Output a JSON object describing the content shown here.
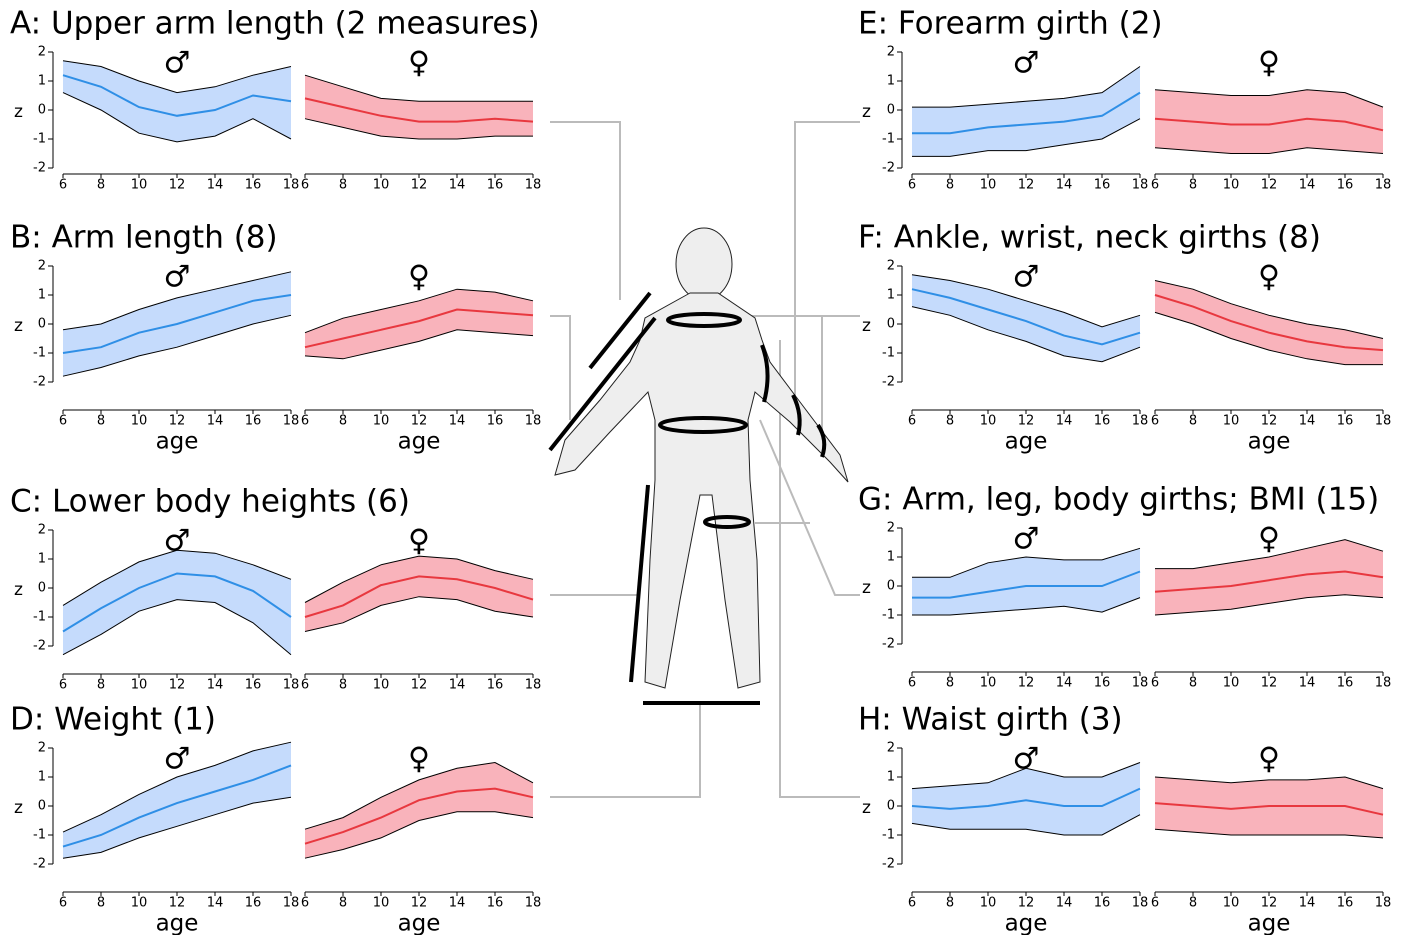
{
  "chart_data": [
    {
      "type": "line",
      "title": "A: Upper arm length (2 measures)",
      "ylabel": "z",
      "x": [
        6,
        8,
        10,
        12,
        14,
        16,
        18
      ],
      "xlim": [
        6,
        18
      ],
      "xticks": [
        6,
        8,
        10,
        12,
        14,
        16,
        18
      ],
      "ylim": [
        -2,
        2
      ],
      "yticks": [
        -2,
        -1,
        0,
        1,
        2
      ],
      "series": [
        {
          "name": "♂",
          "color": "#2f8fe6",
          "fill": "#c5dbfc",
          "values": [
            1.2,
            0.8,
            0.1,
            -0.2,
            0,
            0.5,
            0.3
          ],
          "lower": [
            0.6,
            0,
            -0.8,
            -1.1,
            -0.9,
            -0.3,
            -1
          ],
          "upper": [
            1.7,
            1.5,
            1,
            0.6,
            0.8,
            1.2,
            1.5
          ]
        },
        {
          "name": "♀",
          "color": "#e8383f",
          "fill": "#f9b3bb",
          "values": [
            0.4,
            0.1,
            -0.2,
            -0.4,
            -0.4,
            -0.3,
            -0.4
          ],
          "lower": [
            -0.3,
            -0.6,
            -0.9,
            -1,
            -1,
            -0.9,
            -0.9
          ],
          "upper": [
            1.2,
            0.8,
            0.4,
            0.3,
            0.3,
            0.3,
            0.3
          ]
        }
      ]
    },
    {
      "type": "line",
      "title": "B: Arm length (8)",
      "ylabel": "z",
      "xlabel": "age",
      "x": [
        6,
        8,
        10,
        12,
        14,
        16,
        18
      ],
      "xlim": [
        6,
        18
      ],
      "xticks": [
        6,
        8,
        10,
        12,
        14,
        16,
        18
      ],
      "ylim": [
        -2,
        2
      ],
      "yticks": [
        -2,
        -1,
        0,
        1,
        2
      ],
      "series": [
        {
          "name": "♂",
          "color": "#2f8fe6",
          "fill": "#c5dbfc",
          "values": [
            -1,
            -0.8,
            -0.3,
            0,
            0.4,
            0.8,
            1
          ],
          "lower": [
            -1.8,
            -1.5,
            -1.1,
            -0.8,
            -0.4,
            0,
            0.3
          ],
          "upper": [
            -0.2,
            0,
            0.5,
            0.9,
            1.2,
            1.5,
            1.8
          ]
        },
        {
          "name": "♀",
          "color": "#e8383f",
          "fill": "#f9b3bb",
          "values": [
            -0.8,
            -0.5,
            -0.2,
            0.1,
            0.5,
            0.4,
            0.3
          ],
          "lower": [
            -1.1,
            -1.2,
            -0.9,
            -0.6,
            -0.2,
            -0.3,
            -0.4
          ],
          "upper": [
            -0.3,
            0.2,
            0.5,
            0.8,
            1.2,
            1.1,
            0.8
          ]
        }
      ]
    },
    {
      "type": "line",
      "title": "C: Lower body heights (6)",
      "ylabel": "z",
      "x": [
        6,
        8,
        10,
        12,
        14,
        16,
        18
      ],
      "xlim": [
        6,
        18
      ],
      "xticks": [
        6,
        8,
        10,
        12,
        14,
        16,
        18
      ],
      "ylim": [
        -2,
        2
      ],
      "yticks": [
        -2,
        -1,
        0,
        1,
        2
      ],
      "series": [
        {
          "name": "♂",
          "color": "#2f8fe6",
          "fill": "#c5dbfc",
          "values": [
            -1.5,
            -0.7,
            0,
            0.5,
            0.4,
            -0.1,
            -1
          ],
          "lower": [
            -2.3,
            -1.6,
            -0.8,
            -0.4,
            -0.5,
            -1.2,
            -2.3
          ],
          "upper": [
            -0.6,
            0.2,
            0.9,
            1.3,
            1.2,
            0.8,
            0.3
          ]
        },
        {
          "name": "♀",
          "color": "#e8383f",
          "fill": "#f9b3bb",
          "values": [
            -1,
            -0.6,
            0.1,
            0.4,
            0.3,
            0,
            -0.4
          ],
          "lower": [
            -1.5,
            -1.2,
            -0.6,
            -0.3,
            -0.4,
            -0.8,
            -1
          ],
          "upper": [
            -0.5,
            0.2,
            0.8,
            1.1,
            1,
            0.6,
            0.3
          ]
        }
      ]
    },
    {
      "type": "line",
      "title": "D: Weight (1)",
      "ylabel": "z",
      "xlabel": "age",
      "x": [
        6,
        8,
        10,
        12,
        14,
        16,
        18
      ],
      "xlim": [
        6,
        18
      ],
      "xticks": [
        6,
        8,
        10,
        12,
        14,
        16,
        18
      ],
      "ylim": [
        -2,
        2
      ],
      "yticks": [
        -2,
        -1,
        0,
        1,
        2
      ],
      "series": [
        {
          "name": "♂",
          "color": "#2f8fe6",
          "fill": "#c5dbfc",
          "values": [
            -1.4,
            -1,
            -0.4,
            0.1,
            0.5,
            0.9,
            1.4
          ],
          "lower": [
            -1.8,
            -1.6,
            -1.1,
            -0.7,
            -0.3,
            0.1,
            0.3
          ],
          "upper": [
            -0.9,
            -0.3,
            0.4,
            1,
            1.4,
            1.9,
            2.2
          ]
        },
        {
          "name": "♀",
          "color": "#e8383f",
          "fill": "#f9b3bb",
          "values": [
            -1.3,
            -0.9,
            -0.4,
            0.2,
            0.5,
            0.6,
            0.3
          ],
          "lower": [
            -1.8,
            -1.5,
            -1.1,
            -0.5,
            -0.2,
            -0.2,
            -0.4
          ],
          "upper": [
            -0.8,
            -0.4,
            0.3,
            0.9,
            1.3,
            1.5,
            0.8
          ]
        }
      ]
    },
    {
      "type": "line",
      "title": "E: Forearm girth (2)",
      "ylabel": "z",
      "x": [
        6,
        8,
        10,
        12,
        14,
        16,
        18
      ],
      "xlim": [
        6,
        18
      ],
      "xticks": [
        6,
        8,
        10,
        12,
        14,
        16,
        18
      ],
      "ylim": [
        -2,
        2
      ],
      "yticks": [
        -2,
        -1,
        0,
        1,
        2
      ],
      "series": [
        {
          "name": "♂",
          "color": "#2f8fe6",
          "fill": "#c5dbfc",
          "values": [
            -0.8,
            -0.8,
            -0.6,
            -0.5,
            -0.4,
            -0.2,
            0.6
          ],
          "lower": [
            -1.6,
            -1.6,
            -1.4,
            -1.4,
            -1.2,
            -1,
            -0.3
          ],
          "upper": [
            0.1,
            0.1,
            0.2,
            0.3,
            0.4,
            0.6,
            1.5
          ]
        },
        {
          "name": "♀",
          "color": "#e8383f",
          "fill": "#f9b3bb",
          "values": [
            -0.3,
            -0.4,
            -0.5,
            -0.5,
            -0.3,
            -0.4,
            -0.7
          ],
          "lower": [
            -1.3,
            -1.4,
            -1.5,
            -1.5,
            -1.3,
            -1.4,
            -1.5
          ],
          "upper": [
            0.7,
            0.6,
            0.5,
            0.5,
            0.7,
            0.6,
            0.1
          ]
        }
      ]
    },
    {
      "type": "line",
      "title": "F: Ankle, wrist, neck girths (8)",
      "ylabel": "z",
      "xlabel": "age",
      "x": [
        6,
        8,
        10,
        12,
        14,
        16,
        18
      ],
      "xlim": [
        6,
        18
      ],
      "xticks": [
        6,
        8,
        10,
        12,
        14,
        16,
        18
      ],
      "ylim": [
        -2,
        2
      ],
      "yticks": [
        -2,
        -1,
        0,
        1,
        2
      ],
      "series": [
        {
          "name": "♂",
          "color": "#2f8fe6",
          "fill": "#c5dbfc",
          "values": [
            1.2,
            0.9,
            0.5,
            0.1,
            -0.4,
            -0.7,
            -0.3
          ],
          "lower": [
            0.6,
            0.3,
            -0.2,
            -0.6,
            -1.1,
            -1.3,
            -0.8
          ],
          "upper": [
            1.7,
            1.5,
            1.2,
            0.8,
            0.4,
            -0.1,
            0.3
          ]
        },
        {
          "name": "♀",
          "color": "#e8383f",
          "fill": "#f9b3bb",
          "values": [
            1,
            0.6,
            0.1,
            -0.3,
            -0.6,
            -0.8,
            -0.9
          ],
          "lower": [
            0.4,
            0,
            -0.5,
            -0.9,
            -1.2,
            -1.4,
            -1.4
          ],
          "upper": [
            1.5,
            1.2,
            0.7,
            0.3,
            0,
            -0.2,
            -0.5
          ]
        }
      ]
    },
    {
      "type": "line",
      "title": "G: Arm, leg, body girths; BMI (15)",
      "ylabel": "z",
      "x": [
        6,
        8,
        10,
        12,
        14,
        16,
        18
      ],
      "xlim": [
        6,
        18
      ],
      "xticks": [
        6,
        8,
        10,
        12,
        14,
        16,
        18
      ],
      "ylim": [
        -2,
        2
      ],
      "yticks": [
        -2,
        -1,
        0,
        1,
        2
      ],
      "series": [
        {
          "name": "♂",
          "color": "#2f8fe6",
          "fill": "#c5dbfc",
          "values": [
            -0.4,
            -0.4,
            -0.2,
            0,
            0,
            0,
            0.5
          ],
          "lower": [
            -1,
            -1,
            -0.9,
            -0.8,
            -0.7,
            -0.9,
            -0.4
          ],
          "upper": [
            0.3,
            0.3,
            0.8,
            1,
            0.9,
            0.9,
            1.3
          ]
        },
        {
          "name": "♀",
          "color": "#e8383f",
          "fill": "#f9b3bb",
          "values": [
            -0.2,
            -0.1,
            0,
            0.2,
            0.4,
            0.5,
            0.3
          ],
          "lower": [
            -1,
            -0.9,
            -0.8,
            -0.6,
            -0.4,
            -0.3,
            -0.4
          ],
          "upper": [
            0.6,
            0.6,
            0.8,
            1,
            1.3,
            1.6,
            1.2
          ]
        }
      ]
    },
    {
      "type": "line",
      "title": "H: Waist girth (3)",
      "ylabel": "z",
      "xlabel": "age",
      "x": [
        6,
        8,
        10,
        12,
        14,
        16,
        18
      ],
      "xlim": [
        6,
        18
      ],
      "xticks": [
        6,
        8,
        10,
        12,
        14,
        16,
        18
      ],
      "ylim": [
        -2,
        2
      ],
      "yticks": [
        -2,
        -1,
        0,
        1,
        2
      ],
      "series": [
        {
          "name": "♂",
          "color": "#2f8fe6",
          "fill": "#c5dbfc",
          "values": [
            0,
            -0.1,
            0,
            0.2,
            0,
            0,
            0.6
          ],
          "lower": [
            -0.6,
            -0.8,
            -0.8,
            -0.8,
            -1,
            -1,
            -0.3
          ],
          "upper": [
            0.6,
            0.7,
            0.8,
            1.3,
            1,
            1,
            1.5
          ]
        },
        {
          "name": "♀",
          "color": "#e8383f",
          "fill": "#f9b3bb",
          "values": [
            0.1,
            0,
            -0.1,
            0,
            0,
            0,
            -0.3
          ],
          "lower": [
            -0.8,
            -0.9,
            -1,
            -1,
            -1,
            -1,
            -1.1
          ],
          "upper": [
            1,
            0.9,
            0.8,
            0.9,
            0.9,
            1,
            0.6
          ]
        }
      ]
    }
  ]
}
